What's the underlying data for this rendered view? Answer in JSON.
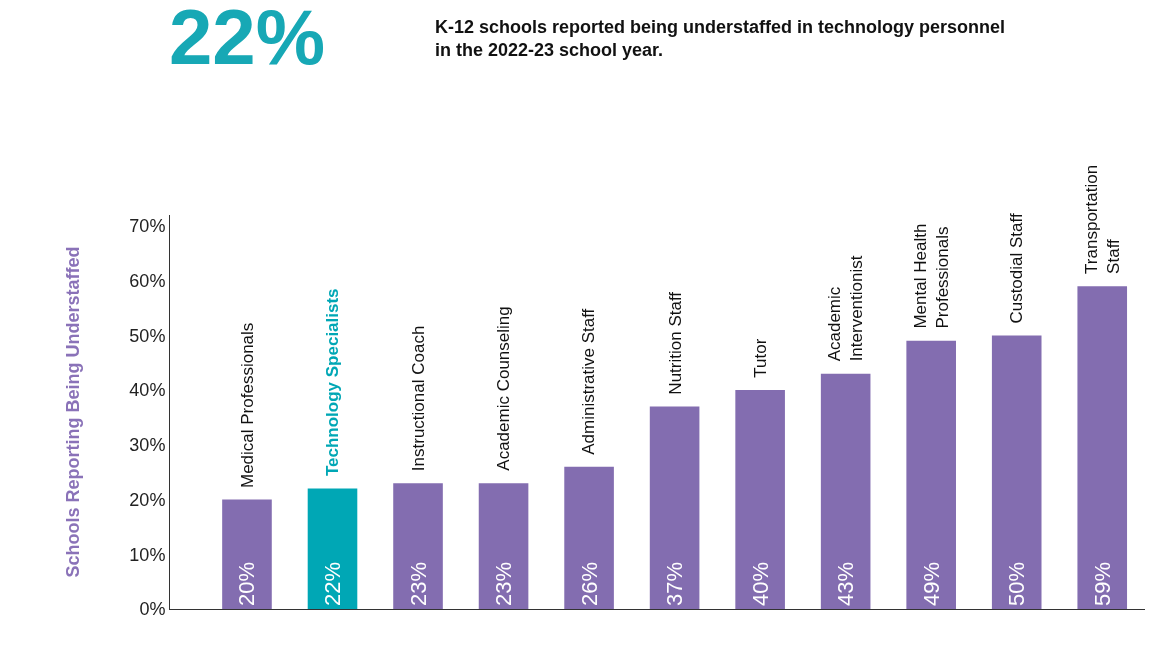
{
  "chart_data": {
    "type": "bar",
    "title": "22%",
    "subtitle": "K-12 schools reported being understaffed in technology personnel in the 2022-23 school year.",
    "ylabel": "Schools Reporting Being Understaffed",
    "categories": [
      "Medical Professionals",
      "Technology Specialists",
      "Instructional Coach",
      "Academic Counseling",
      "Administrative Staff",
      "Nutrition Staff",
      "Tutor",
      "Academic\nInterventionist",
      "Mental Health\nProfessionals",
      "Custodial Staff",
      "Transportation\nStaff"
    ],
    "values": [
      20,
      22,
      23,
      23,
      26,
      37,
      40,
      43,
      49,
      50,
      59
    ],
    "colors": [
      "#836db0",
      "#00a7b5",
      "#836db0",
      "#836db0",
      "#836db0",
      "#836db0",
      "#836db0",
      "#836db0",
      "#836db0",
      "#836db0",
      "#836db0"
    ],
    "value_labels": [
      "20%",
      "22%",
      "23%",
      "23%",
      "26%",
      "37%",
      "40%",
      "43%",
      "49%",
      "50%",
      "59%"
    ],
    "ylim": [
      0,
      72
    ],
    "yticks": [
      {
        "value": 0,
        "label": "0%"
      },
      {
        "value": 10,
        "label": "10%"
      },
      {
        "value": 20,
        "label": "20%"
      },
      {
        "value": 30,
        "label": "30%"
      },
      {
        "value": 40,
        "label": "40%"
      },
      {
        "value": 50,
        "label": "50%"
      },
      {
        "value": 60,
        "label": "60%"
      },
      {
        "value": 70,
        "label": "70%"
      }
    ],
    "tick_labels": "y"
  }
}
